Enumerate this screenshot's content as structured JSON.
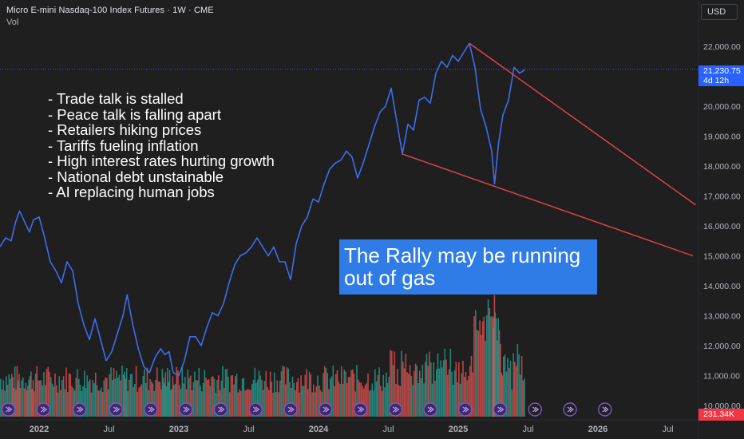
{
  "header": {
    "symbol_title": "Micro E-mini Nasdaq-100 Index Futures · 1W · CME",
    "volume_label": "Vol",
    "currency": "USD"
  },
  "notes": [
    "- Trade talk is stalled",
    "- Peace talk is falling apart",
    "- Retailers hiking prices",
    "- Tariffs fueling inflation",
    "- High interest rates hurting growth",
    "- National debt unstainable",
    "- AI replacing human jobs"
  ],
  "callout": {
    "line1": "The Rally may be running",
    "line2": "out of gas"
  },
  "last_price": {
    "value": "21,230.75",
    "countdown": "4d 12h"
  },
  "last_volume": "231.34K",
  "colors": {
    "background": "#1f1f1f",
    "price_line": "#3d6ef0",
    "trendline": "#e8434f",
    "volume_up": "#26a69a",
    "volume_down": "#ef5350",
    "callout_bg": "#2f7ce6",
    "last_price_bg": "#2962ff"
  },
  "chart_data": {
    "type": "line",
    "title": "Micro E-mini Nasdaq-100 Index Futures · 1W · CME",
    "y_axis": {
      "ticks": [
        "22,000.00",
        "21,000.00",
        "20,000.00",
        "19,000.00",
        "18,000.00",
        "17,000.00",
        "16,000.00",
        "15,000.00",
        "14,000.00",
        "13,000.00",
        "12,000.00",
        "11,000.00",
        "10,000.00"
      ],
      "tick_values": [
        22000,
        21000,
        20000,
        19000,
        18000,
        17000,
        16000,
        15000,
        14000,
        13000,
        12000,
        11000,
        10000
      ],
      "range": [
        9700,
        23100
      ]
    },
    "x_axis": {
      "ticks": [
        "2022",
        "Jul",
        "2023",
        "Jul",
        "2024",
        "Jul",
        "2025",
        "Jul",
        "2026",
        "Jul"
      ],
      "tick_dates": [
        2022.0,
        2022.5,
        2023.0,
        2023.5,
        2024.0,
        2024.5,
        2025.0,
        2025.5,
        2026.0,
        2026.5
      ],
      "range": [
        2021.72,
        2026.72
      ]
    },
    "series": [
      {
        "points": [
          [
            2021.72,
            15300
          ],
          [
            2021.76,
            15600
          ],
          [
            2021.8,
            15500
          ],
          [
            2021.83,
            16100
          ],
          [
            2021.86,
            16500
          ],
          [
            2021.9,
            16100
          ],
          [
            2021.93,
            15800
          ],
          [
            2021.96,
            16200
          ],
          [
            2022.0,
            16300
          ],
          [
            2022.04,
            15600
          ],
          [
            2022.08,
            14800
          ],
          [
            2022.12,
            14500
          ],
          [
            2022.16,
            14100
          ],
          [
            2022.2,
            14800
          ],
          [
            2022.24,
            14500
          ],
          [
            2022.28,
            13400
          ],
          [
            2022.32,
            12700
          ],
          [
            2022.36,
            12200
          ],
          [
            2022.4,
            12900
          ],
          [
            2022.44,
            12200
          ],
          [
            2022.48,
            11500
          ],
          [
            2022.52,
            11800
          ],
          [
            2022.56,
            12400
          ],
          [
            2022.6,
            13000
          ],
          [
            2022.63,
            13700
          ],
          [
            2022.67,
            12700
          ],
          [
            2022.71,
            11900
          ],
          [
            2022.75,
            11300
          ],
          [
            2022.79,
            11100
          ],
          [
            2022.83,
            11600
          ],
          [
            2022.87,
            11900
          ],
          [
            2022.9,
            11700
          ],
          [
            2022.93,
            11800
          ],
          [
            2022.96,
            11100
          ],
          [
            2023.0,
            11000
          ],
          [
            2023.04,
            11500
          ],
          [
            2023.08,
            12300
          ],
          [
            2023.12,
            12300
          ],
          [
            2023.16,
            12000
          ],
          [
            2023.2,
            12600
          ],
          [
            2023.24,
            13100
          ],
          [
            2023.28,
            13000
          ],
          [
            2023.32,
            13400
          ],
          [
            2023.36,
            14100
          ],
          [
            2023.4,
            14700
          ],
          [
            2023.44,
            15000
          ],
          [
            2023.48,
            15100
          ],
          [
            2023.52,
            15300
          ],
          [
            2023.56,
            15600
          ],
          [
            2023.6,
            15300
          ],
          [
            2023.64,
            15000
          ],
          [
            2023.68,
            15300
          ],
          [
            2023.72,
            14800
          ],
          [
            2023.76,
            14800
          ],
          [
            2023.8,
            14200
          ],
          [
            2023.84,
            15400
          ],
          [
            2023.88,
            16000
          ],
          [
            2023.92,
            16300
          ],
          [
            2023.96,
            16900
          ],
          [
            2024.0,
            16800
          ],
          [
            2024.04,
            17400
          ],
          [
            2024.08,
            17900
          ],
          [
            2024.12,
            18100
          ],
          [
            2024.16,
            18200
          ],
          [
            2024.2,
            18500
          ],
          [
            2024.24,
            18300
          ],
          [
            2024.28,
            17600
          ],
          [
            2024.32,
            18100
          ],
          [
            2024.36,
            18700
          ],
          [
            2024.4,
            19300
          ],
          [
            2024.44,
            19800
          ],
          [
            2024.48,
            20000
          ],
          [
            2024.52,
            20600
          ],
          [
            2024.56,
            19500
          ],
          [
            2024.6,
            18400
          ],
          [
            2024.64,
            19400
          ],
          [
            2024.68,
            19200
          ],
          [
            2024.72,
            20200
          ],
          [
            2024.76,
            20300
          ],
          [
            2024.8,
            20100
          ],
          [
            2024.84,
            21100
          ],
          [
            2024.88,
            21500
          ],
          [
            2024.92,
            21300
          ],
          [
            2024.96,
            21700
          ],
          [
            2025.0,
            21500
          ],
          [
            2025.04,
            21800
          ],
          [
            2025.08,
            22100
          ],
          [
            2025.12,
            21300
          ],
          [
            2025.16,
            19900
          ],
          [
            2025.2,
            19300
          ],
          [
            2025.24,
            18500
          ],
          [
            2025.26,
            17400
          ],
          [
            2025.29,
            18800
          ],
          [
            2025.32,
            19700
          ],
          [
            2025.36,
            20200
          ],
          [
            2025.4,
            21300
          ],
          [
            2025.44,
            21100
          ],
          [
            2025.48,
            21230
          ]
        ]
      }
    ],
    "volume": {
      "max": 13100,
      "note": "volume bars overlay the lower price area"
    },
    "trendlines": [
      {
        "from": [
          2025.08,
          22100
        ],
        "to": [
          2026.7,
          16700
        ]
      },
      {
        "from": [
          2024.6,
          18400
        ],
        "to": [
          2026.68,
          15000
        ]
      }
    ],
    "last_price_line": 21230,
    "grid": false,
    "legend": "none"
  }
}
